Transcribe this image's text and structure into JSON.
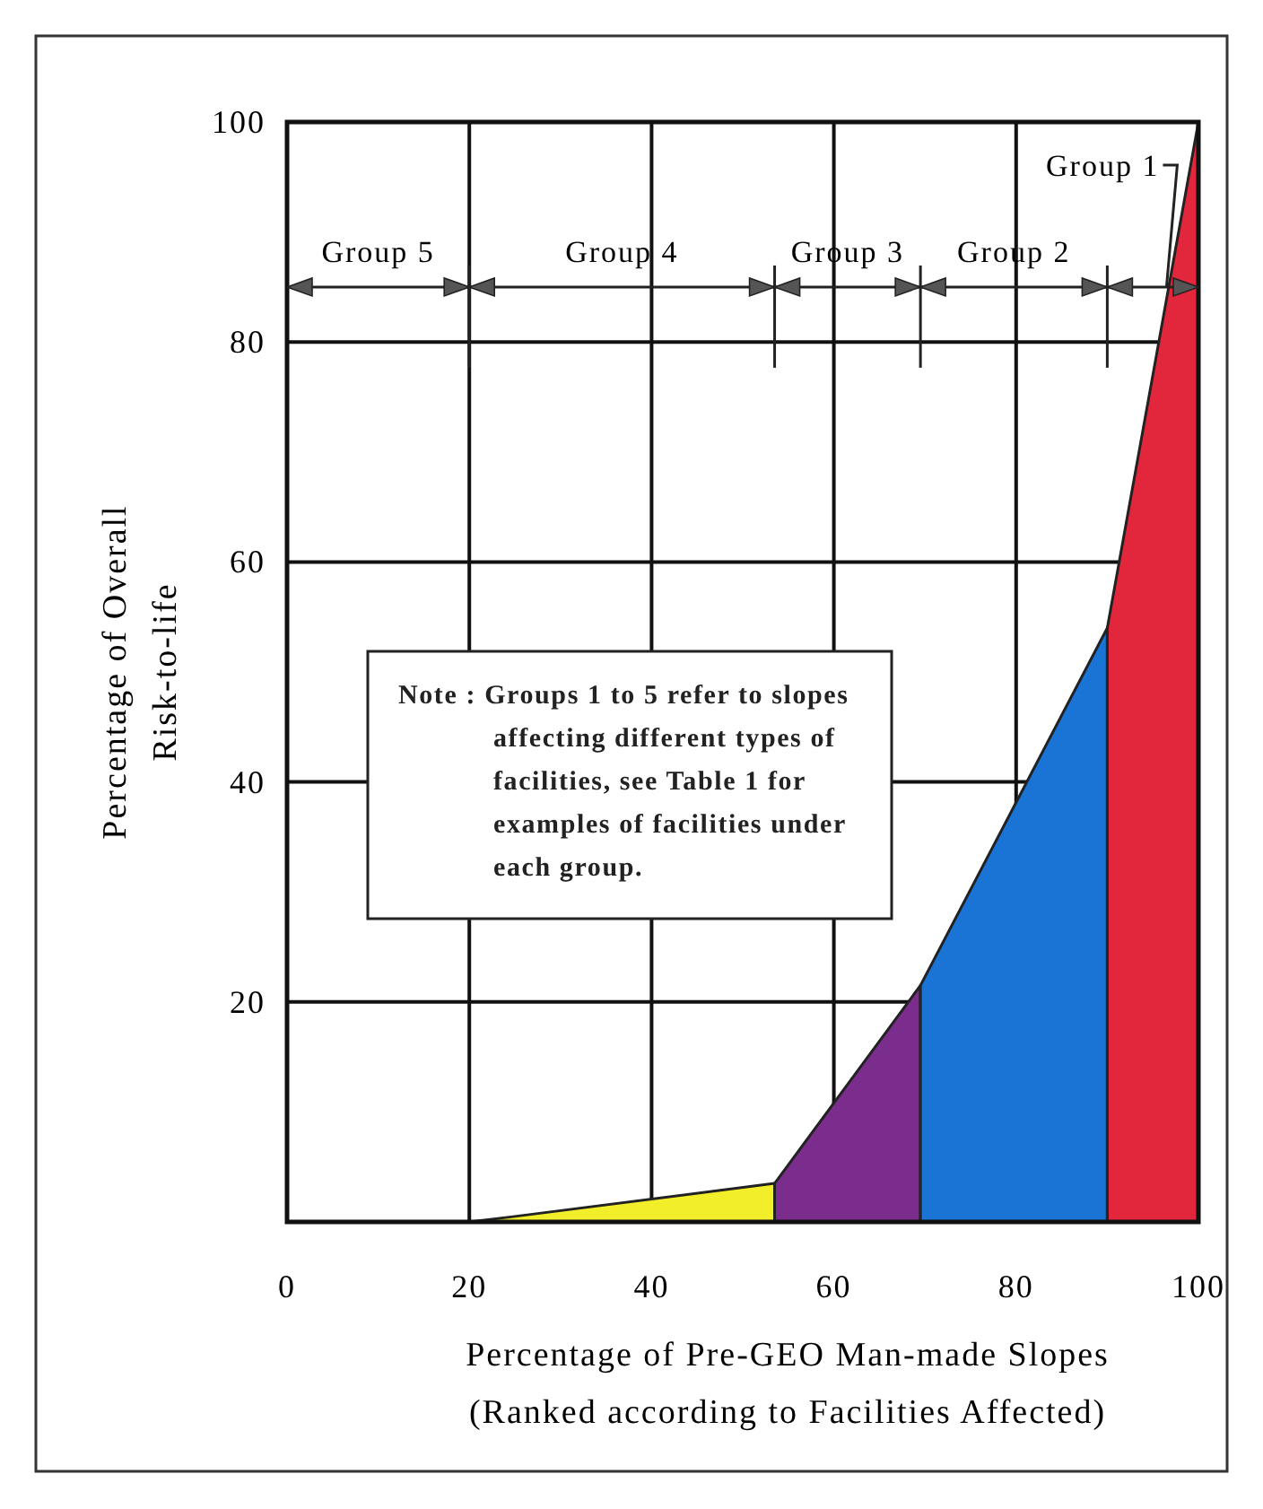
{
  "chart_data": {
    "type": "area",
    "xlabel": "Percentage of Pre-GEO Man-made Slopes\n(Ranked according to Facilities Affected)",
    "ylabel": "Percentage of Overall\nRisk-to-life",
    "xlim": [
      0,
      100
    ],
    "ylim": [
      0,
      100
    ],
    "xticks": [
      0,
      20,
      40,
      60,
      80,
      100
    ],
    "yticks": [
      20,
      40,
      60,
      80,
      100
    ],
    "grid": true,
    "series": [
      {
        "color": "#f2ee2a",
        "x": [
          20,
          25,
          53.5
        ],
        "values": [
          0,
          0.5,
          3.5
        ]
      },
      {
        "color": "#7b2d8e",
        "x": [
          53.5,
          69.5
        ],
        "values": [
          3.5,
          21.5
        ]
      },
      {
        "color": "#1a74d6",
        "x": [
          69.5,
          90
        ],
        "values": [
          21.5,
          54
        ]
      },
      {
        "color": "#e2263c",
        "x": [
          90,
          100
        ],
        "values": [
          54,
          100
        ]
      }
    ],
    "annotations": [
      "Note : Groups 1 to 5 refer to slopes\naffecting different types of\nfacilities, see Table 1 for\nexamples of facilities under\neach group.",
      "Group 5",
      "Group 4",
      "Group 3",
      "Group 2",
      {
        "text": "Group 1",
        "x": 96.5,
        "y": 85
      }
    ]
  }
}
